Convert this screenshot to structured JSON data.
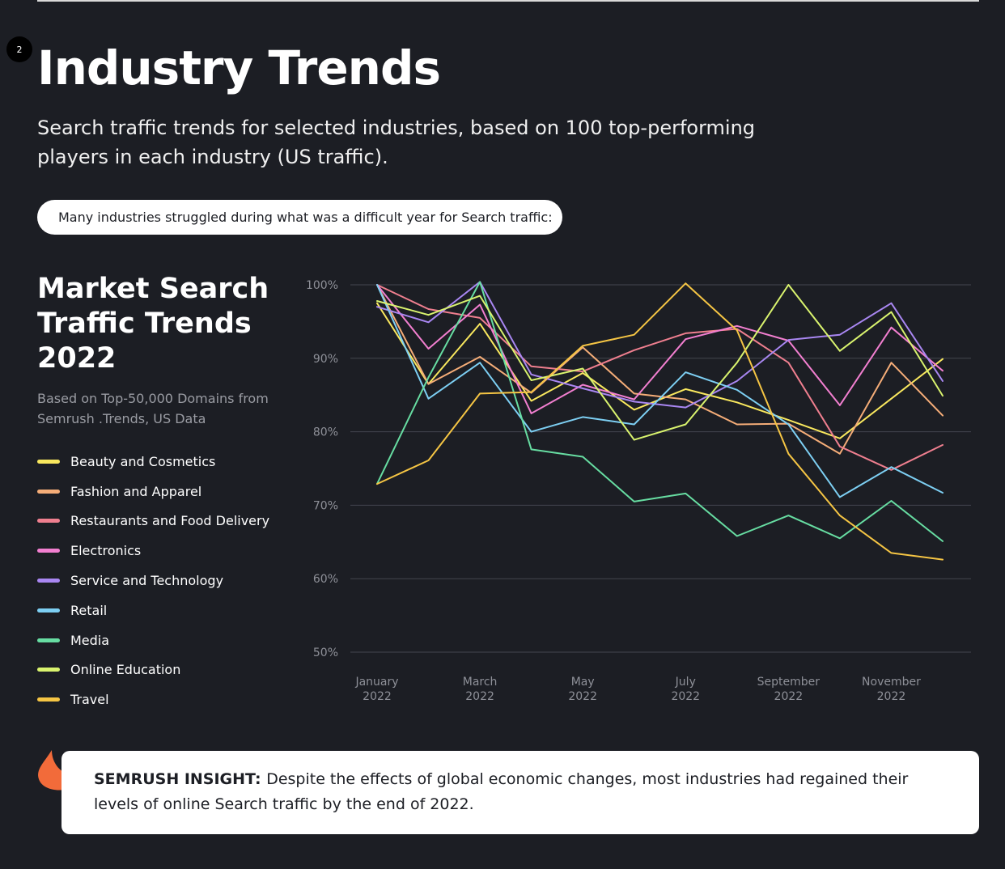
{
  "page": {
    "badge": "2",
    "title": "Industry Trends",
    "subtitle": "Search traffic trends for selected industries, based on 100 top-performing players in each industry (US traffic).",
    "callout": "Many industries struggled during what was a difficult year for Search traffic:"
  },
  "chart_header": {
    "title": "Market Search Traffic Trends 2022",
    "source": "Based on Top-50,000 Domains from Semrush .Trends, US Data"
  },
  "insight": {
    "icon": "semrush-flame-icon",
    "label": "SEMRUSH INSIGHT:",
    "text": "Despite the effects of global economic changes, most industries had regained their levels of online Search traffic by the end of 2022."
  },
  "colors": {
    "background": "#1c1e24",
    "grid": "#43464f",
    "axis_text": "#8e9098"
  },
  "chart_data": {
    "type": "line",
    "x_months": [
      "2022-01",
      "2022-02",
      "2022-03",
      "2022-04",
      "2022-05",
      "2022-06",
      "2022-07",
      "2022-08",
      "2022-09",
      "2022-10",
      "2022-11",
      "2022-12"
    ],
    "x_tick_labels": [
      {
        "month": "2022-01",
        "line1": "January",
        "line2": "2022"
      },
      {
        "month": "2022-03",
        "line1": "March",
        "line2": "2022"
      },
      {
        "month": "2022-05",
        "line1": "May",
        "line2": "2022"
      },
      {
        "month": "2022-07",
        "line1": "July",
        "line2": "2022"
      },
      {
        "month": "2022-09",
        "line1": "September",
        "line2": "2022"
      },
      {
        "month": "2022-11",
        "line1": "November",
        "line2": "2022"
      }
    ],
    "y_ticks": [
      "100%",
      "90%",
      "80%",
      "70%",
      "60%",
      "50%"
    ],
    "ylim": [
      50,
      100
    ],
    "grid": true,
    "legend_position": "left",
    "series": [
      {
        "name": "Beauty and Cosmetics",
        "color": "#f9e85e",
        "values": [
          97.5,
          86.5,
          94.7,
          84.2,
          88.0,
          83.0,
          85.8,
          84.0,
          81.6,
          79.1,
          84.5,
          89.9
        ]
      },
      {
        "name": "Fashion and Apparel",
        "color": "#f5ad78",
        "values": [
          100,
          86.5,
          90.2,
          85.3,
          91.5,
          85.2,
          84.4,
          81.0,
          81.1,
          77.0,
          89.4,
          82.2
        ]
      },
      {
        "name": "Restaurants and Food Delivery",
        "color": "#ef7f8f",
        "values": [
          100,
          96.7,
          95.5,
          88.9,
          88.2,
          91.1,
          93.4,
          94.0,
          89.4,
          78.0,
          74.8,
          78.2
        ]
      },
      {
        "name": "Electronics",
        "color": "#f27fd0",
        "values": [
          100,
          91.3,
          97.3,
          82.5,
          86.4,
          84.4,
          92.6,
          94.4,
          92.4,
          83.6,
          94.2,
          88.3
        ]
      },
      {
        "name": "Service and Technology",
        "color": "#a987f2",
        "values": [
          97.0,
          94.9,
          100.4,
          87.8,
          85.9,
          84.1,
          83.3,
          86.9,
          92.5,
          93.2,
          97.5,
          86.9
        ]
      },
      {
        "name": "Retail",
        "color": "#7dcff3",
        "values": [
          100,
          84.5,
          89.4,
          80.0,
          82.0,
          81.0,
          88.1,
          85.7,
          81.0,
          71.1,
          75.2,
          71.7
        ]
      },
      {
        "name": "Media",
        "color": "#67dda2",
        "values": [
          72.9,
          87.4,
          100.4,
          77.6,
          76.6,
          70.5,
          71.6,
          65.8,
          68.6,
          65.5,
          70.6,
          65.1
        ]
      },
      {
        "name": "Online Education",
        "color": "#d9f36e",
        "values": [
          97.8,
          95.9,
          98.5,
          87.0,
          88.6,
          78.9,
          81.0,
          89.4,
          100.0,
          91.0,
          96.3,
          84.9
        ]
      },
      {
        "name": "Travel",
        "color": "#f5c544",
        "values": [
          72.9,
          76.1,
          85.2,
          85.4,
          91.7,
          93.2,
          100.2,
          93.8,
          77.0,
          68.6,
          63.5,
          62.6
        ]
      }
    ]
  }
}
